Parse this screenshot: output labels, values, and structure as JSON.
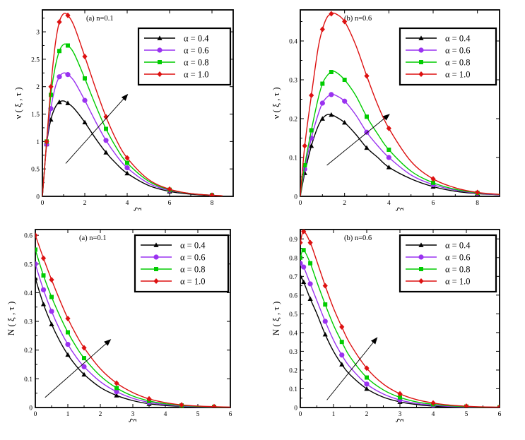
{
  "colors": {
    "alpha_0_4": "#000000",
    "alpha_0_6": "#9a32f0",
    "alpha_0_8": "#00cc00",
    "alpha_1_0": "#dd1111"
  },
  "chart_data": [
    {
      "type": "line",
      "panel_label": "(a)  n=0.1",
      "xlabel": "ξ",
      "ylabel": "ν ( ξ , τ )",
      "xlim": [
        0,
        9
      ],
      "ylim": [
        0,
        3.4
      ],
      "xticks": [
        "0",
        "2",
        "4",
        "6",
        "8"
      ],
      "yticks": [
        "0",
        "0.5",
        "1",
        "1.5",
        "2",
        "2.5",
        "3"
      ],
      "legend_position": "top-right",
      "arrow": {
        "from": [
          1.1,
          0.6
        ],
        "to": [
          4.0,
          1.85
        ]
      },
      "series": [
        {
          "name": "α = 0.4",
          "marker": "triangle",
          "color": "#000000",
          "x": [
            0,
            0.2,
            0.4,
            0.6,
            0.8,
            1.0,
            1.2,
            1.5,
            2.0,
            2.5,
            3.0,
            3.5,
            4.0,
            5.0,
            6.0,
            7.0,
            8.0,
            8.5
          ],
          "y": [
            0,
            0.95,
            1.4,
            1.62,
            1.72,
            1.74,
            1.7,
            1.6,
            1.35,
            1.06,
            0.8,
            0.59,
            0.42,
            0.2,
            0.09,
            0.04,
            0.015,
            0.01
          ]
        },
        {
          "name": "α = 0.6",
          "marker": "circle",
          "color": "#9a32f0",
          "x": [
            0,
            0.2,
            0.4,
            0.6,
            0.8,
            1.0,
            1.2,
            1.5,
            2.0,
            2.5,
            3.0,
            3.5,
            4.0,
            5.0,
            6.0,
            7.0,
            8.0,
            8.5
          ],
          "y": [
            0,
            0.95,
            1.6,
            1.98,
            2.18,
            2.25,
            2.22,
            2.1,
            1.75,
            1.37,
            1.02,
            0.74,
            0.52,
            0.24,
            0.11,
            0.05,
            0.02,
            0.01
          ]
        },
        {
          "name": "α = 0.8",
          "marker": "square",
          "color": "#00cc00",
          "x": [
            0,
            0.2,
            0.4,
            0.6,
            0.8,
            1.0,
            1.2,
            1.5,
            2.0,
            2.5,
            3.0,
            3.5,
            4.0,
            5.0,
            6.0,
            7.0,
            8.0,
            8.5
          ],
          "y": [
            0,
            1.0,
            1.85,
            2.35,
            2.65,
            2.77,
            2.75,
            2.6,
            2.15,
            1.67,
            1.23,
            0.88,
            0.61,
            0.28,
            0.12,
            0.05,
            0.02,
            0.01
          ]
        },
        {
          "name": "α = 1.0",
          "marker": "diamond",
          "color": "#dd1111",
          "x": [
            0,
            0.2,
            0.4,
            0.6,
            0.8,
            1.0,
            1.2,
            1.5,
            2.0,
            2.5,
            3.0,
            3.5,
            4.0,
            5.0,
            6.0,
            7.0,
            8.0,
            8.5
          ],
          "y": [
            0,
            1.0,
            2.0,
            2.75,
            3.18,
            3.33,
            3.3,
            3.1,
            2.55,
            1.98,
            1.45,
            1.02,
            0.7,
            0.31,
            0.13,
            0.05,
            0.02,
            0.01
          ]
        }
      ]
    },
    {
      "type": "line",
      "panel_label": "(b)  n=0.6",
      "xlabel": "ξ",
      "ylabel": "ν ( ξ , τ )",
      "xlim": [
        0,
        9
      ],
      "ylim": [
        0,
        0.48
      ],
      "xticks": [
        "0",
        "2",
        "4",
        "6",
        "8"
      ],
      "yticks": [
        "0",
        "0.1",
        "0.2",
        "0.3",
        "0.4"
      ],
      "legend_position": "top-right",
      "arrow": {
        "from": [
          1.2,
          0.08
        ],
        "to": [
          4.0,
          0.21
        ]
      },
      "series": [
        {
          "name": "α = 0.4",
          "marker": "triangle",
          "color": "#000000",
          "x": [
            0,
            0.2,
            0.5,
            0.8,
            1.0,
            1.2,
            1.4,
            1.6,
            2.0,
            2.5,
            3.0,
            3.5,
            4.0,
            5.0,
            6.0,
            7.0,
            8.0,
            9.0
          ],
          "y": [
            0,
            0.06,
            0.13,
            0.18,
            0.2,
            0.21,
            0.21,
            0.205,
            0.19,
            0.16,
            0.125,
            0.1,
            0.075,
            0.045,
            0.025,
            0.013,
            0.007,
            0.004
          ]
        },
        {
          "name": "α = 0.6",
          "marker": "circle",
          "color": "#9a32f0",
          "x": [
            0,
            0.2,
            0.5,
            0.8,
            1.0,
            1.2,
            1.4,
            1.6,
            2.0,
            2.5,
            3.0,
            3.5,
            4.0,
            5.0,
            6.0,
            7.0,
            8.0,
            9.0
          ],
          "y": [
            0,
            0.07,
            0.15,
            0.21,
            0.24,
            0.255,
            0.262,
            0.26,
            0.245,
            0.21,
            0.165,
            0.13,
            0.1,
            0.055,
            0.03,
            0.016,
            0.008,
            0.004
          ]
        },
        {
          "name": "α = 0.8",
          "marker": "square",
          "color": "#00cc00",
          "x": [
            0,
            0.2,
            0.5,
            0.8,
            1.0,
            1.2,
            1.4,
            1.6,
            2.0,
            2.5,
            3.0,
            3.5,
            4.0,
            5.0,
            6.0,
            7.0,
            8.0,
            9.0
          ],
          "y": [
            0,
            0.08,
            0.17,
            0.25,
            0.29,
            0.31,
            0.32,
            0.32,
            0.3,
            0.26,
            0.205,
            0.16,
            0.12,
            0.065,
            0.035,
            0.018,
            0.009,
            0.005
          ]
        },
        {
          "name": "α = 1.0",
          "marker": "diamond",
          "color": "#dd1111",
          "x": [
            0,
            0.2,
            0.5,
            0.8,
            1.0,
            1.2,
            1.4,
            1.6,
            2.0,
            2.5,
            3.0,
            3.5,
            4.0,
            5.0,
            6.0,
            7.0,
            8.0,
            9.0
          ],
          "y": [
            0,
            0.13,
            0.26,
            0.38,
            0.43,
            0.46,
            0.47,
            0.47,
            0.45,
            0.39,
            0.31,
            0.235,
            0.175,
            0.09,
            0.045,
            0.022,
            0.01,
            0.005
          ]
        }
      ]
    },
    {
      "type": "line",
      "panel_label": "(a)  n=0.1",
      "xlabel": "ξ",
      "ylabel": "N ( ξ , τ )",
      "xlim": [
        0,
        6
      ],
      "ylim": [
        0,
        0.62
      ],
      "xticks": [
        "0",
        "1",
        "2",
        "3",
        "4",
        "5",
        "6"
      ],
      "yticks": [
        "0",
        "0.1",
        "0.2",
        "0.3",
        "0.4",
        "0.5",
        "0.6"
      ],
      "legend_position": "top-right",
      "arrow": {
        "from": [
          0.3,
          0.035
        ],
        "to": [
          2.3,
          0.235
        ]
      },
      "series": [
        {
          "name": "α = 0.4",
          "marker": "triangle",
          "color": "#000000",
          "x": [
            0,
            0.25,
            0.5,
            0.75,
            1.0,
            1.25,
            1.5,
            2.0,
            2.5,
            3.0,
            3.5,
            4.0,
            4.5,
            5.0,
            5.5,
            6.0
          ],
          "y": [
            0.45,
            0.36,
            0.29,
            0.232,
            0.184,
            0.146,
            0.115,
            0.07,
            0.042,
            0.024,
            0.013,
            0.007,
            0.004,
            0.002,
            0.001,
            0.0005
          ]
        },
        {
          "name": "α = 0.6",
          "marker": "circle",
          "color": "#9a32f0",
          "x": [
            0,
            0.25,
            0.5,
            0.75,
            1.0,
            1.25,
            1.5,
            2.0,
            2.5,
            3.0,
            3.5,
            4.0,
            4.5,
            5.0,
            5.5,
            6.0
          ],
          "y": [
            0.5,
            0.41,
            0.335,
            0.272,
            0.22,
            0.177,
            0.142,
            0.09,
            0.055,
            0.032,
            0.018,
            0.01,
            0.005,
            0.003,
            0.0015,
            0.0007
          ]
        },
        {
          "name": "α = 0.8",
          "marker": "square",
          "color": "#00cc00",
          "x": [
            0,
            0.25,
            0.5,
            0.75,
            1.0,
            1.25,
            1.5,
            2.0,
            2.5,
            3.0,
            3.5,
            4.0,
            4.5,
            5.0,
            5.5,
            6.0
          ],
          "y": [
            0.55,
            0.46,
            0.385,
            0.32,
            0.262,
            0.213,
            0.172,
            0.11,
            0.068,
            0.04,
            0.023,
            0.013,
            0.007,
            0.004,
            0.002,
            0.001
          ]
        },
        {
          "name": "α = 1.0",
          "marker": "diamond",
          "color": "#dd1111",
          "x": [
            0,
            0.25,
            0.5,
            0.75,
            1.0,
            1.25,
            1.5,
            2.0,
            2.5,
            3.0,
            3.5,
            4.0,
            4.5,
            5.0,
            5.5,
            6.0
          ],
          "y": [
            0.6,
            0.52,
            0.445,
            0.375,
            0.31,
            0.255,
            0.208,
            0.135,
            0.085,
            0.052,
            0.03,
            0.017,
            0.009,
            0.005,
            0.003,
            0.0015
          ]
        }
      ]
    },
    {
      "type": "line",
      "panel_label": "(b)  n=0.6",
      "xlabel": "ξ",
      "ylabel": "N ( ξ , τ )",
      "xlim": [
        0,
        6
      ],
      "ylim": [
        0,
        0.95
      ],
      "xticks": [
        "0",
        "1",
        "2",
        "3",
        "4",
        "5",
        "6"
      ],
      "yticks": [
        "0",
        "0.1",
        "0.2",
        "0.3",
        "0.4",
        "0.5",
        "0.6",
        "0.7",
        "0.8",
        "0.9"
      ],
      "legend_position": "top-right",
      "arrow": {
        "from": [
          0.8,
          0.04
        ],
        "to": [
          2.3,
          0.37
        ]
      },
      "series": [
        {
          "name": "α = 0.4",
          "marker": "triangle",
          "color": "#000000",
          "x": [
            0,
            0.1,
            0.3,
            0.5,
            0.75,
            1.0,
            1.25,
            1.5,
            2.0,
            2.5,
            3.0,
            3.5,
            4.0,
            4.5,
            5.0,
            5.5,
            6.0
          ],
          "y": [
            0.7,
            0.67,
            0.58,
            0.5,
            0.39,
            0.3,
            0.23,
            0.175,
            0.1,
            0.055,
            0.03,
            0.016,
            0.008,
            0.004,
            0.002,
            0.001,
            0.0005
          ]
        },
        {
          "name": "α = 0.6",
          "marker": "circle",
          "color": "#9a32f0",
          "x": [
            0,
            0.1,
            0.3,
            0.5,
            0.75,
            1.0,
            1.25,
            1.5,
            2.0,
            2.5,
            3.0,
            3.5,
            4.0,
            4.5,
            5.0,
            5.5,
            6.0
          ],
          "y": [
            0.77,
            0.75,
            0.66,
            0.57,
            0.46,
            0.36,
            0.28,
            0.215,
            0.125,
            0.072,
            0.04,
            0.022,
            0.012,
            0.006,
            0.003,
            0.0015,
            0.0007
          ]
        },
        {
          "name": "α = 0.8",
          "marker": "square",
          "color": "#00cc00",
          "x": [
            0,
            0.1,
            0.3,
            0.5,
            0.75,
            1.0,
            1.25,
            1.5,
            2.0,
            2.5,
            3.0,
            3.5,
            4.0,
            4.5,
            5.0,
            5.5,
            6.0
          ],
          "y": [
            0.8,
            0.84,
            0.77,
            0.67,
            0.55,
            0.44,
            0.35,
            0.27,
            0.16,
            0.094,
            0.054,
            0.03,
            0.017,
            0.009,
            0.005,
            0.0025,
            0.0012
          ]
        },
        {
          "name": "α = 1.0",
          "marker": "diamond",
          "color": "#dd1111",
          "x": [
            0,
            0.1,
            0.3,
            0.5,
            0.75,
            1.0,
            1.25,
            1.5,
            2.0,
            2.5,
            3.0,
            3.5,
            4.0,
            4.5,
            5.0,
            5.5,
            6.0
          ],
          "y": [
            0.88,
            0.94,
            0.88,
            0.78,
            0.65,
            0.53,
            0.43,
            0.34,
            0.21,
            0.125,
            0.073,
            0.042,
            0.024,
            0.013,
            0.007,
            0.0035,
            0.0018
          ]
        }
      ]
    }
  ]
}
